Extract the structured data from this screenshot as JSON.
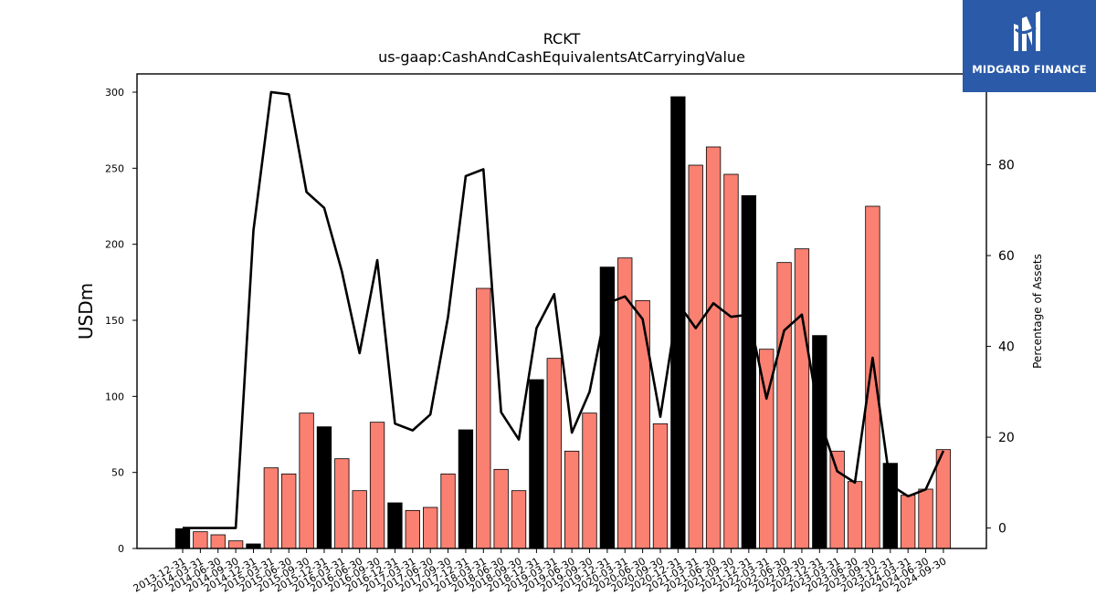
{
  "chart_data": {
    "type": "bar+line",
    "title": "RCKT",
    "subtitle": "us-gaap:CashAndCashEquivalentsAtCarryingValue",
    "ylabel": "USDm",
    "y2label": "Percentage of Assets",
    "ylim": [
      0,
      312
    ],
    "y2lim": [
      -4.5,
      100
    ],
    "yticks": [
      0,
      50,
      100,
      150,
      200,
      250,
      300
    ],
    "y2ticks": [
      0,
      20,
      40,
      60,
      80
    ],
    "categories": [
      "2013-12-31",
      "2014-03-31",
      "2014-06-30",
      "2014-09-30",
      "2014-12-31",
      "2015-03-31",
      "2015-06-30",
      "2015-09-30",
      "2015-12-31",
      "2016-03-31",
      "2016-06-30",
      "2016-09-30",
      "2016-12-31",
      "2017-03-31",
      "2017-06-30",
      "2017-09-30",
      "2017-12-31",
      "2018-03-31",
      "2018-06-30",
      "2018-09-30",
      "2018-12-31",
      "2019-03-31",
      "2019-06-30",
      "2019-09-30",
      "2019-12-31",
      "2020-03-31",
      "2020-06-30",
      "2020-09-30",
      "2020-12-31",
      "2021-03-31",
      "2021-06-30",
      "2021-09-30",
      "2021-12-31",
      "2022-03-31",
      "2022-06-30",
      "2022-09-30",
      "2022-12-31",
      "2023-03-31",
      "2023-06-30",
      "2023-09-30",
      "2023-12-31",
      "2024-03-31",
      "2024-06-30",
      "2024-09-30"
    ],
    "series": [
      {
        "type": "bar",
        "values": [
          13,
          11,
          9,
          5,
          3,
          53,
          49,
          89,
          80,
          59,
          38,
          83,
          30,
          25,
          27,
          49,
          78,
          171,
          52,
          38,
          111,
          125,
          64,
          89,
          185,
          191,
          163,
          82,
          297,
          252,
          264,
          246,
          232,
          131,
          188,
          197,
          140,
          64,
          44,
          225,
          56,
          35,
          39,
          65
        ]
      },
      {
        "type": "line",
        "axis": "right",
        "values": [
          0,
          0,
          0,
          0,
          65.5,
          96,
          95.5,
          74,
          70.5,
          56.5,
          38.5,
          59,
          23,
          21.5,
          25,
          46.5,
          77.5,
          79,
          25.5,
          19.5,
          44,
          51.5,
          21,
          30,
          49.5,
          51,
          46,
          24.5,
          49.5,
          44,
          49.5,
          46.5,
          47,
          28.5,
          43.5,
          47,
          24,
          12.5,
          10,
          37.5,
          9.5,
          7,
          8.5,
          17
        ]
      }
    ],
    "colors": {
      "bar": "#fa8072",
      "bar_year_end": "#000000",
      "line": "#000000"
    }
  },
  "logo": {
    "text": "MIDGARD FINANCE",
    "background": "#2a5aa8"
  }
}
